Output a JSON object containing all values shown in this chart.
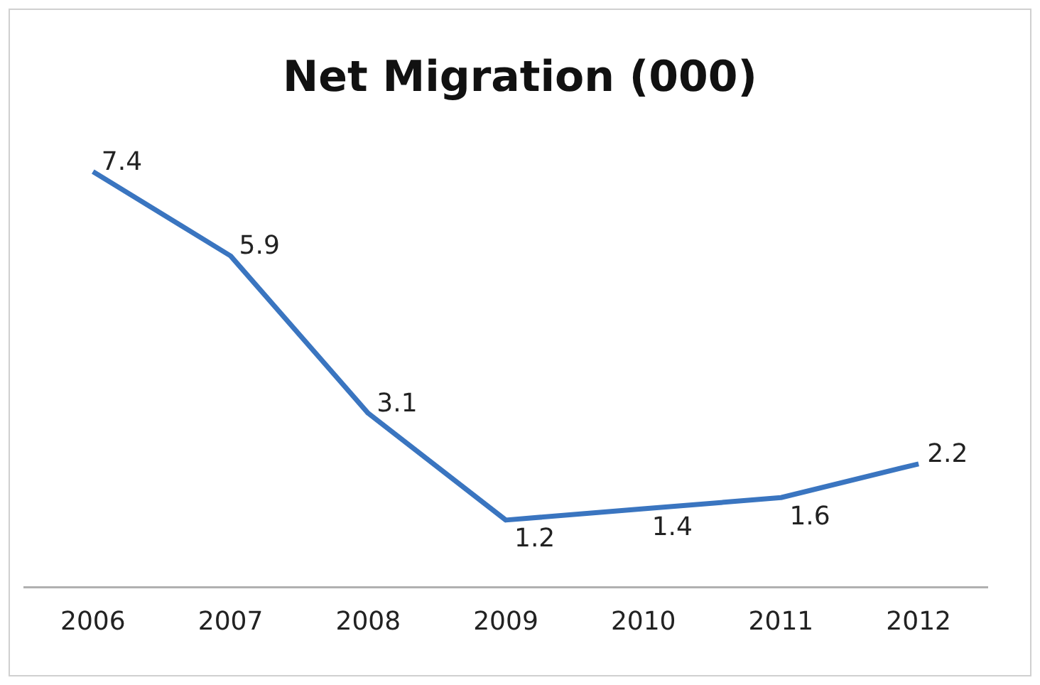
{
  "chart_data": {
    "type": "line",
    "title": "Net Migration (000)",
    "categories": [
      "2006",
      "2007",
      "2008",
      "2009",
      "2010",
      "2011",
      "2012"
    ],
    "series": [
      {
        "color": "#3a75c0",
        "values": [
          7.4,
          5.9,
          3.1,
          1.2,
          1.4,
          1.6,
          2.2
        ]
      }
    ],
    "tick_labels": "x",
    "data_labels": true,
    "grid": false,
    "legend": false,
    "marker": "none",
    "line_style": "solid"
  }
}
